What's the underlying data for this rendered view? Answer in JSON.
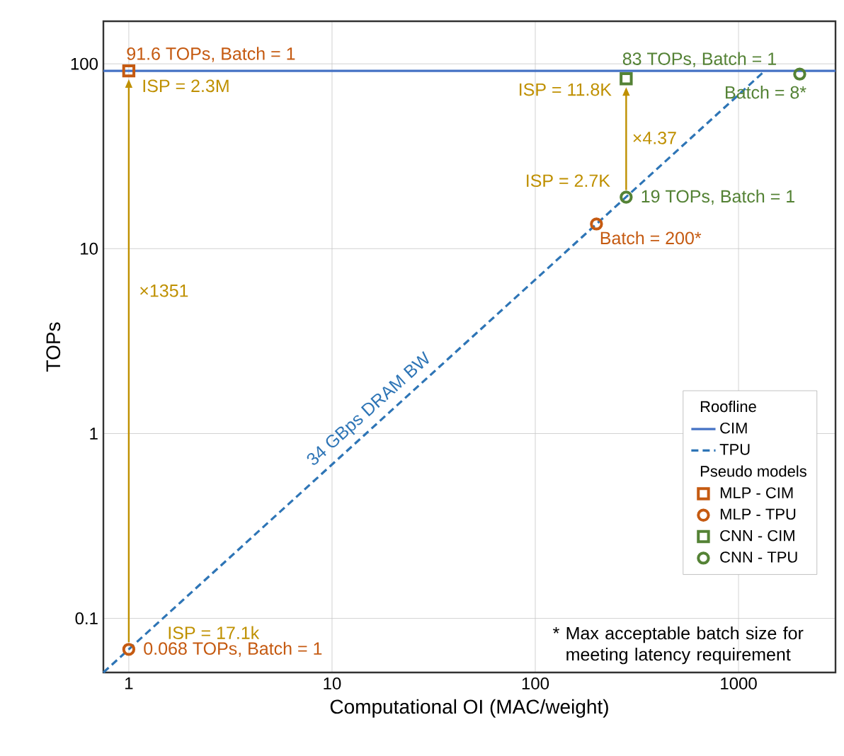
{
  "chart_data": {
    "type": "line",
    "xlabel": "Computational OI (MAC/weight)",
    "ylabel": "TOPs",
    "legend_title": "Roofline",
    "log": "xy",
    "grid": true,
    "legend": "right",
    "xlim": [
      0.75,
      3000
    ],
    "ylim": [
      0.051,
      170
    ],
    "xticks": [
      1,
      10,
      100,
      1000
    ],
    "yticks": [
      0.1,
      1,
      10,
      100
    ],
    "series": [
      {
        "name": "CIM",
        "color": "#4472c4",
        "line_style": "solid",
        "marker": "none",
        "x": [
          0.75,
          3000
        ],
        "values": [
          91.6,
          91.6
        ]
      },
      {
        "name": "TPU",
        "color": "#2e75b6",
        "line_style": "dashed",
        "marker": "none",
        "x": [
          0.75,
          1347
        ],
        "values": [
          0.051,
          91.6
        ]
      },
      {
        "name": "MLP - CIM",
        "type": "scatter",
        "color": "#c55a11",
        "marker": "square",
        "x": [
          1
        ],
        "values": [
          91.6
        ]
      },
      {
        "name": "MLP - TPU",
        "type": "scatter",
        "color": "#c55a11",
        "marker": "circle",
        "x": [
          1,
          200
        ],
        "values": [
          0.068,
          13.6
        ]
      },
      {
        "name": "CNN - CIM",
        "type": "scatter",
        "color": "#548235",
        "marker": "square",
        "x": [
          280
        ],
        "values": [
          83
        ]
      },
      {
        "name": "CNN - TPU",
        "type": "scatter",
        "color": "#548235",
        "marker": "circle",
        "x": [
          280,
          2000
        ],
        "values": [
          19,
          88
        ]
      }
    ],
    "annotations": [
      {
        "text": "91.6 TOPs, Batch = 1",
        "x": 1,
        "y": 91.6
      },
      {
        "text": "ISP = 2.3M",
        "x": 1,
        "y": 91.6
      },
      "×1351",
      {
        "text": "ISP = 17.1k",
        "x": 1,
        "y": 0.068
      },
      {
        "text": "0.068 TOPs, Batch = 1",
        "x": 1,
        "y": 0.068
      },
      {
        "text": "83 TOPs, Batch = 1",
        "x": 280,
        "y": 83
      },
      {
        "text": "ISP = 11.8K",
        "x": 280,
        "y": 83
      },
      "×4.37",
      {
        "text": "ISP = 2.7K",
        "x": 280,
        "y": 19
      },
      {
        "text": "19 TOPs, Batch = 1",
        "x": 280,
        "y": 19
      },
      {
        "text": "Batch = 200*",
        "x": 200,
        "y": 13.6
      },
      {
        "text": "Batch = 8*",
        "x": 2000,
        "y": 88
      },
      {
        "text": "34 GBps DRAM BW",
        "x": 17,
        "y": 1.16
      },
      "Pseudo models",
      "* Max acceptable batch size for meeting latency requirement"
    ]
  }
}
